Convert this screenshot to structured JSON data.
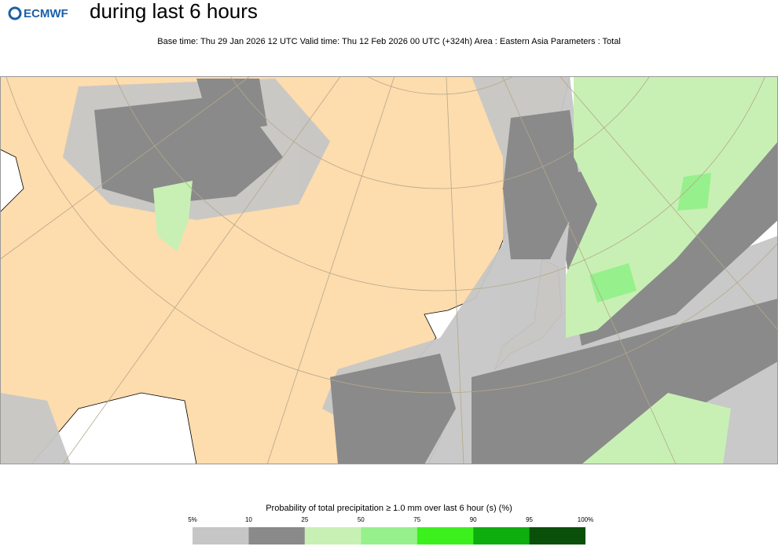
{
  "header": {
    "logo": "ECMWF",
    "title": "during last 6 hours",
    "subtitle": "Base time: Thu 29 Jan 2026 12 UTC Valid time: Thu 12 Feb 2026 00 UTC (+324h) Area : Eastern Asia Parameters : Total"
  },
  "legend": {
    "title": "Probability of total precipitation ≥ 1.0 mm over last 6 hour (s) (%)",
    "labels": [
      "5%",
      "10",
      "25",
      "50",
      "75",
      "90",
      "95",
      "100%"
    ],
    "colors": [
      "#c6c6c6",
      "#8a8a8a",
      "#c8f0b4",
      "#96f08c",
      "#3cf01e",
      "#0fae0f",
      "#0a500a"
    ]
  }
}
